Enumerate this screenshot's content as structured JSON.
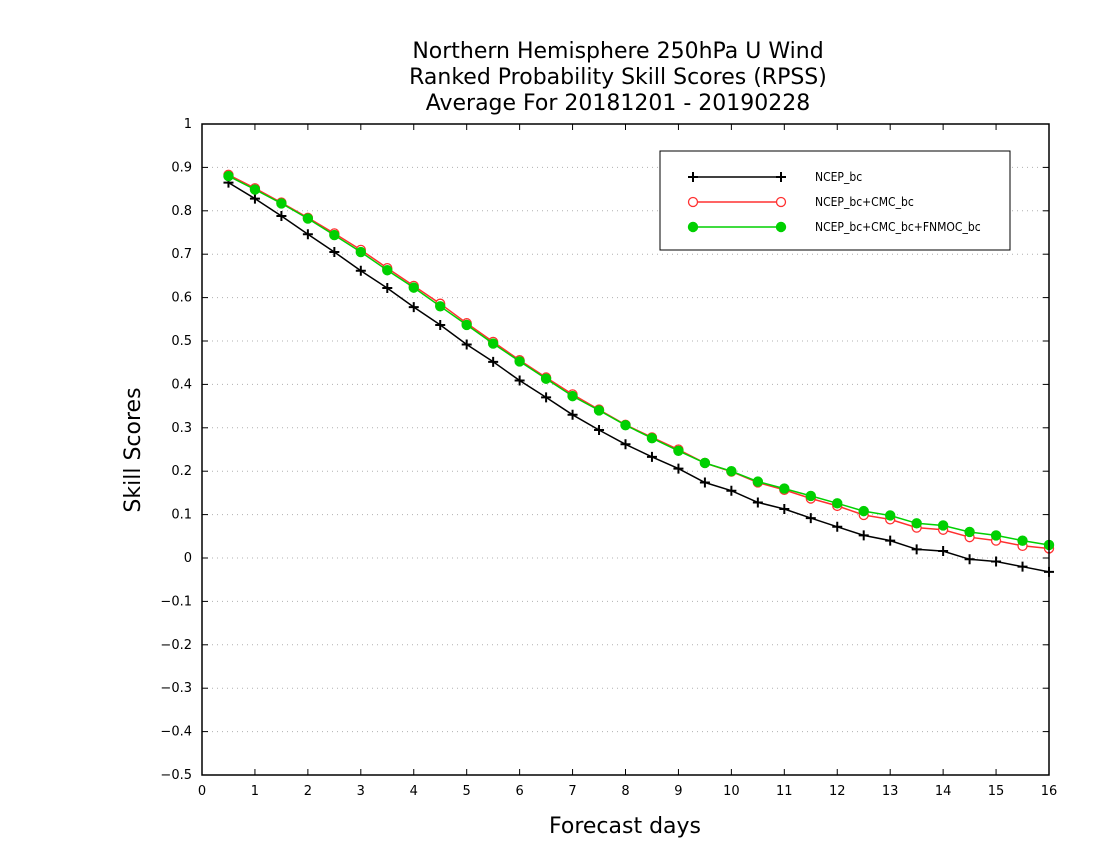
{
  "chart_data": {
    "type": "line",
    "title_lines": [
      "Northern Hemisphere 250hPa U Wind",
      "Ranked Probability Skill Scores (RPSS)",
      "Average For 20181201 - 20190228"
    ],
    "xlabel": "Forecast days",
    "ylabel": "Skill Scores",
    "xlim": [
      0,
      16
    ],
    "ylim": [
      -0.5,
      1
    ],
    "x_ticks": [
      0,
      1,
      2,
      3,
      4,
      5,
      6,
      7,
      8,
      9,
      10,
      11,
      12,
      13,
      14,
      15,
      16
    ],
    "y_ticks": [
      1,
      0.9,
      0.8,
      0.7,
      0.6,
      0.5,
      0.4,
      0.3,
      0.2,
      0.1,
      0,
      -0.1,
      -0.2,
      -0.3,
      -0.4,
      -0.5
    ],
    "y_tick_labels": [
      "1",
      "0.9",
      "0.8",
      "0.7",
      "0.6",
      "0.5",
      "0.4",
      "0.3",
      "0.2",
      "0.1",
      "0",
      "−0.1",
      "−0.2",
      "−0.3",
      "−0.4",
      "−0.5"
    ],
    "grid": "horizontal dotted",
    "legend_position": "top-right",
    "x": [
      0.5,
      1,
      1.5,
      2,
      2.5,
      3,
      3.5,
      4,
      4.5,
      5,
      5.5,
      6,
      6.5,
      7,
      7.5,
      8,
      8.5,
      9,
      9.5,
      10,
      10.5,
      11,
      11.5,
      12,
      12.5,
      13,
      13.5,
      14,
      14.5,
      15,
      15.5,
      16
    ],
    "series": [
      {
        "name": "NCEP_bc",
        "color": "#000000",
        "marker": "plus",
        "values": [
          0.865,
          0.828,
          0.788,
          0.746,
          0.705,
          0.662,
          0.622,
          0.578,
          0.537,
          0.492,
          0.452,
          0.409,
          0.37,
          0.33,
          0.295,
          0.262,
          0.233,
          0.206,
          0.174,
          0.155,
          0.128,
          0.113,
          0.092,
          0.072,
          0.052,
          0.04,
          0.02,
          0.016,
          -0.003,
          -0.008,
          -0.02,
          -0.032
        ]
      },
      {
        "name": "NCEP_bc+CMC_bc",
        "color": "#ff3030",
        "marker": "open-circle",
        "values": [
          0.883,
          0.852,
          0.819,
          0.784,
          0.748,
          0.71,
          0.668,
          0.627,
          0.586,
          0.541,
          0.498,
          0.456,
          0.416,
          0.377,
          0.342,
          0.307,
          0.278,
          0.25,
          0.219,
          0.199,
          0.174,
          0.157,
          0.137,
          0.12,
          0.099,
          0.089,
          0.07,
          0.065,
          0.048,
          0.04,
          0.028,
          0.022
        ]
      },
      {
        "name": "NCEP_bc+CMC_bc+FNMOC_bc",
        "color": "#00d000",
        "marker": "filled-circle",
        "values": [
          0.88,
          0.849,
          0.817,
          0.782,
          0.744,
          0.705,
          0.663,
          0.623,
          0.58,
          0.537,
          0.494,
          0.453,
          0.413,
          0.373,
          0.34,
          0.306,
          0.276,
          0.247,
          0.219,
          0.2,
          0.176,
          0.16,
          0.143,
          0.126,
          0.108,
          0.098,
          0.08,
          0.075,
          0.06,
          0.052,
          0.04,
          0.03
        ]
      }
    ]
  }
}
